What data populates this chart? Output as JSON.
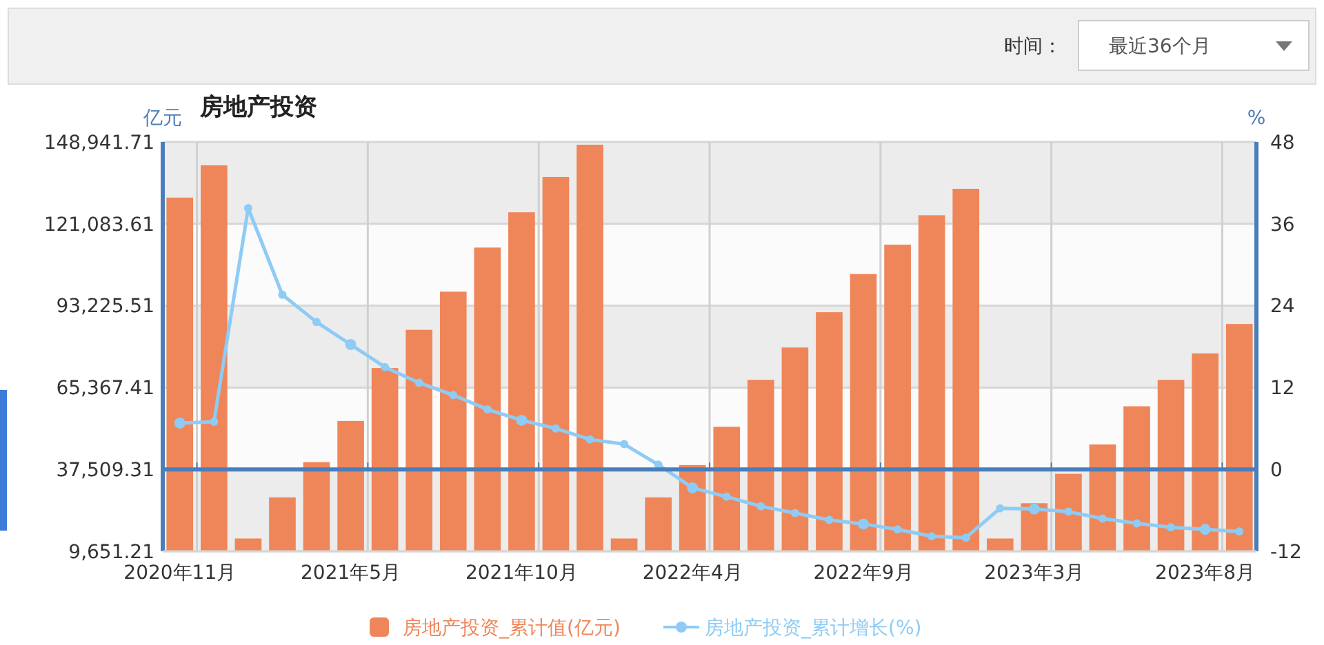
{
  "chart_data": {
    "type": "bar",
    "title": "房地产投资",
    "ylabel": "亿元",
    "y2label": "%",
    "annotations": [
      "时间：",
      "最近36个月"
    ],
    "categories": [
      "2020年11月",
      null,
      null,
      null,
      null,
      "2021年5月",
      null,
      null,
      null,
      null,
      "2021年10月",
      null,
      null,
      null,
      null,
      "2022年4月",
      null,
      null,
      null,
      null,
      "2022年9月",
      null,
      null,
      null,
      null,
      "2023年3月",
      null,
      null,
      null,
      null,
      "2023年8月",
      null
    ],
    "series": [
      {
        "name": "房地产投资_累计值(亿元)",
        "color": "#ef8659",
        "values": [
          130000,
          141000,
          14000,
          28000,
          40000,
          54000,
          72000,
          85000,
          98000,
          113000,
          125000,
          137000,
          148000,
          14000,
          28000,
          39000,
          52000,
          68000,
          79000,
          91000,
          104000,
          114000,
          124000,
          133000,
          14000,
          26000,
          36000,
          46000,
          59000,
          68000,
          77000,
          87000
        ]
      },
      {
        "name": "房地产投资_累计增长(%)",
        "type": "line",
        "axis": "y2",
        "color": "#8ecbf5",
        "values": [
          6.8,
          7.0,
          38.3,
          25.6,
          21.6,
          18.3,
          15.0,
          12.7,
          10.9,
          8.8,
          7.2,
          6.0,
          4.4,
          3.7,
          0.7,
          -2.7,
          -4.0,
          -5.4,
          -6.4,
          -7.4,
          -8.0,
          -8.8,
          -9.8,
          -10.0,
          -5.7,
          -5.8,
          -6.2,
          -7.2,
          -7.9,
          -8.5,
          -8.8,
          -9.1
        ]
      }
    ],
    "ylim": [
      9651.21,
      148941.71
    ],
    "yticks": [
      {
        "value": 9651.21,
        "label": "9,651.21"
      },
      {
        "value": 37509.31,
        "label": "37,509.31"
      },
      {
        "value": 65367.41,
        "label": "65,367.41"
      },
      {
        "value": 93225.51,
        "label": "93,225.51"
      },
      {
        "value": 121083.61,
        "label": "121,083.61"
      },
      {
        "value": 148941.71,
        "label": "148,941.71"
      }
    ],
    "y2lim": [
      -12,
      48
    ],
    "y2ticks": [
      -12,
      0,
      12,
      24,
      36,
      48
    ],
    "ref_lines": [
      {
        "axis": "y2",
        "value": 0,
        "color": "#4a7ebb"
      }
    ],
    "grid": true,
    "legend": "bottom",
    "marker": "circle",
    "line_style": "solid"
  }
}
